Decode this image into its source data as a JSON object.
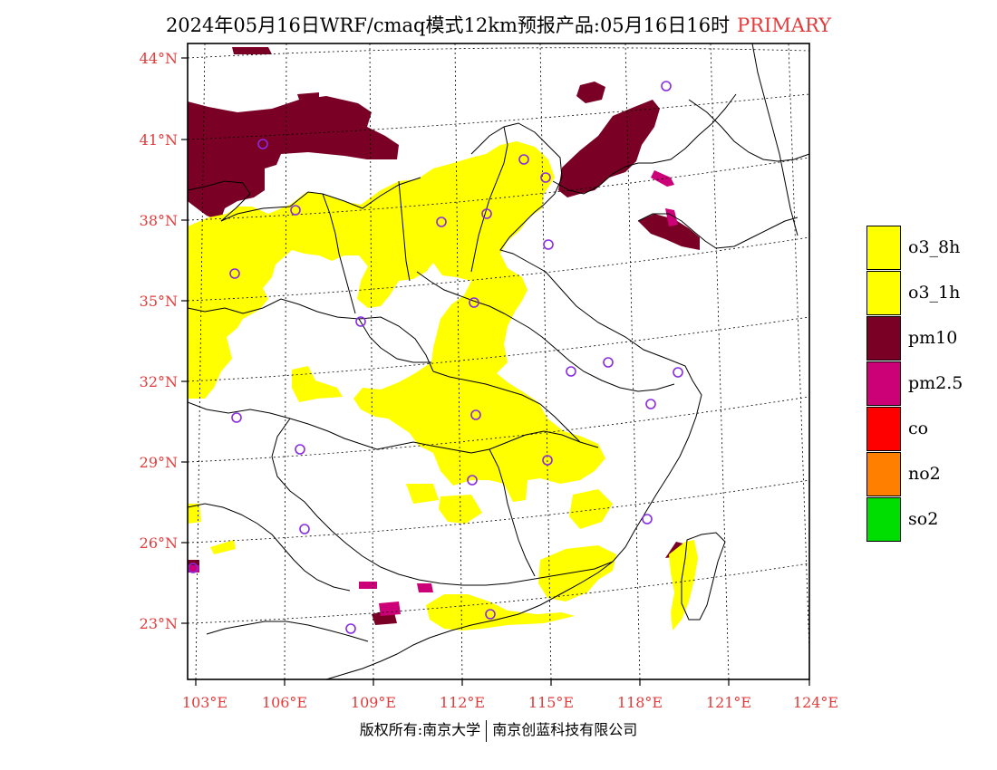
{
  "title": {
    "text": "2024年05月16日WRF/cmaq模式12km预报产品:05月16日16时",
    "tag": "PRIMARY"
  },
  "lat_labels": [
    "44°N",
    "41°N",
    "38°N",
    "35°N",
    "32°N",
    "29°N",
    "26°N",
    "23°N"
  ],
  "lon_labels": [
    "103°E",
    "106°E",
    "109°E",
    "112°E",
    "115°E",
    "118°E",
    "121°E",
    "124°E"
  ],
  "legend": [
    {
      "label": "o3_8h",
      "color": "#ffff00"
    },
    {
      "label": "o3_1h",
      "color": "#ffff00"
    },
    {
      "label": "pm10",
      "color": "#7a0026"
    },
    {
      "label": "pm2.5",
      "color": "#cc0077"
    },
    {
      "label": "co",
      "color": "#ff0000"
    },
    {
      "label": "no2",
      "color": "#ff7f00"
    },
    {
      "label": "so2",
      "color": "#00dd00"
    }
  ],
  "copyright": {
    "left": "版权所有:南京大学",
    "right": "南京创蓝科技有限公司"
  },
  "colors": {
    "label_red": "#e23b3b",
    "o3": "#ffff00",
    "pm10": "#7a0026",
    "pm25": "#cc0077",
    "station": "#8a2be2"
  }
}
